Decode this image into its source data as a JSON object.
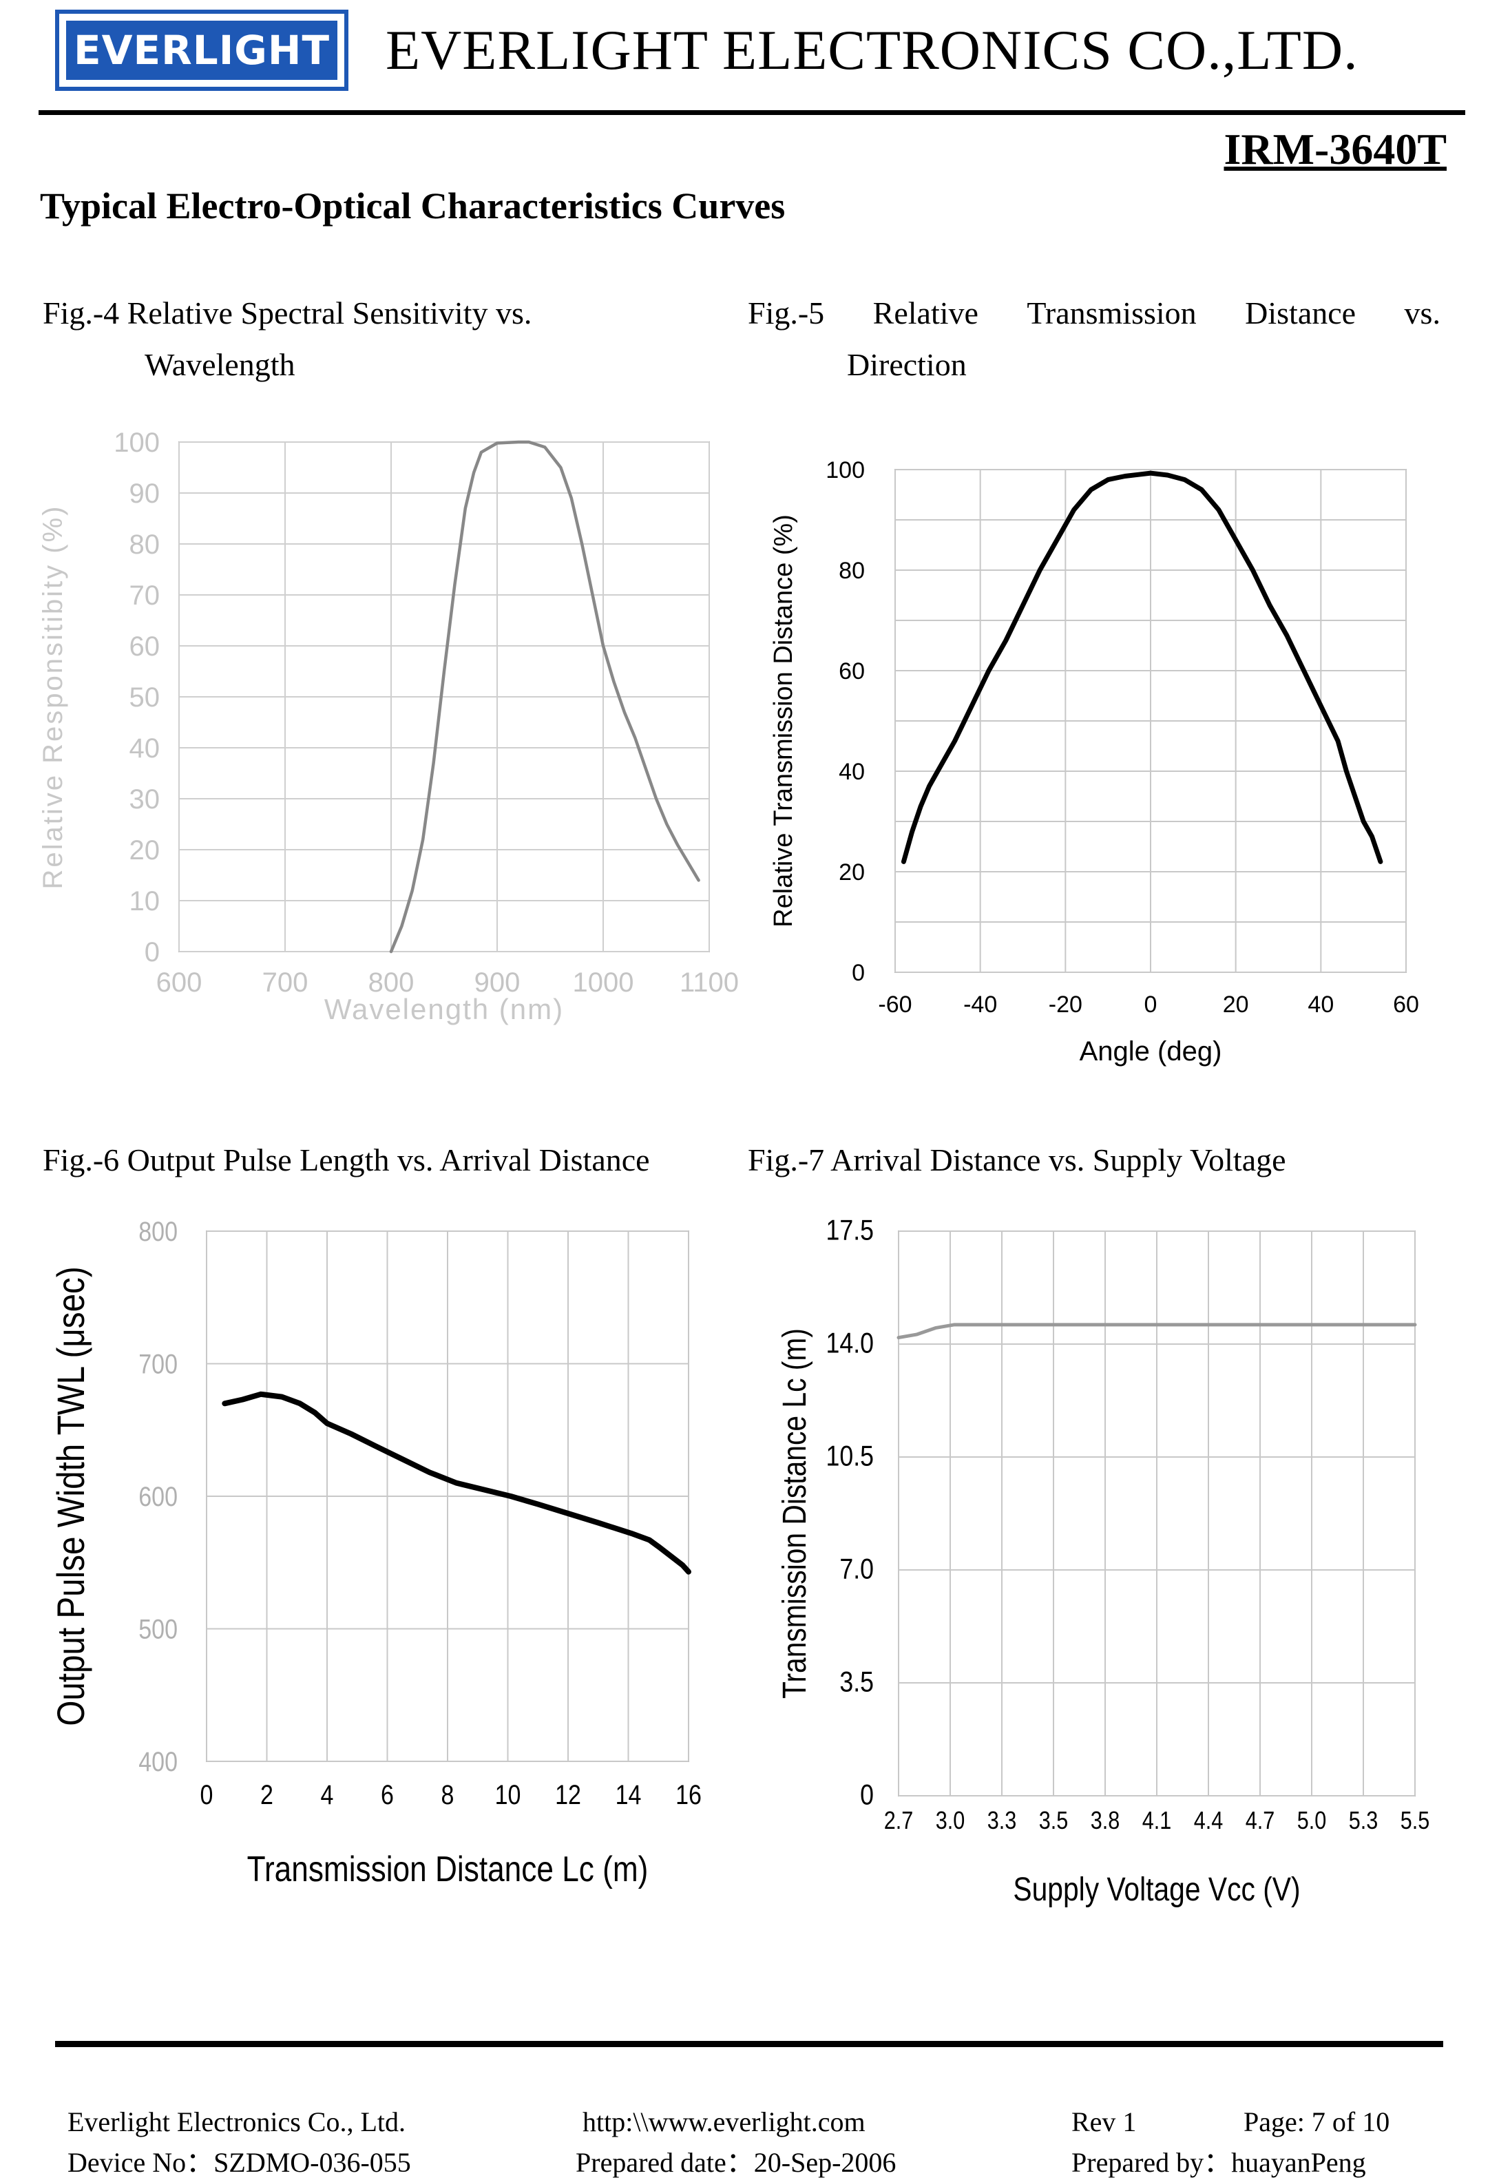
{
  "header": {
    "logo_text": "EVERLIGHT",
    "company": "EVERLIGHT ELECTRONICS CO.,LTD.",
    "part_no": "IRM-3640T",
    "section_title": "Typical Electro-Optical Characteristics Curves"
  },
  "colors": {
    "logo_blue": "#1e58b5",
    "light_curve": "#888888",
    "dark_curve": "#000000",
    "grid": "#c8c8c8"
  },
  "chart_data": [
    {
      "type": "line",
      "title_line1": "Fig.-4 Relative Spectral Sensitivity vs.",
      "title_line2": "Wavelength",
      "xlabel": "Wavelength (nm)",
      "ylabel": "Relative Responsitibity (%)",
      "xlim": [
        600,
        1100
      ],
      "ylim": [
        0,
        100
      ],
      "x_ticks": [
        "600",
        "700",
        "800",
        "900",
        "1000",
        "1100"
      ],
      "y_ticks": [
        "0",
        "10",
        "20",
        "30",
        "40",
        "50",
        "60",
        "70",
        "80",
        "90",
        "100"
      ],
      "series": [
        {
          "points": [
            [
              800,
              0
            ],
            [
              810,
              5
            ],
            [
              820,
              12
            ],
            [
              830,
              22
            ],
            [
              840,
              37
            ],
            [
              850,
              55
            ],
            [
              860,
              72
            ],
            [
              870,
              87
            ],
            [
              878,
              94
            ],
            [
              885,
              98
            ],
            [
              900,
              99.8
            ],
            [
              920,
              100
            ],
            [
              930,
              100
            ],
            [
              945,
              99
            ],
            [
              960,
              95
            ],
            [
              970,
              89
            ],
            [
              980,
              80
            ],
            [
              990,
              70
            ],
            [
              1000,
              60
            ],
            [
              1010,
              53
            ],
            [
              1020,
              47
            ],
            [
              1030,
              42
            ],
            [
              1040,
              36
            ],
            [
              1050,
              30
            ],
            [
              1060,
              25
            ],
            [
              1070,
              21
            ],
            [
              1080,
              17.5
            ],
            [
              1090,
              14
            ]
          ]
        }
      ]
    },
    {
      "type": "line",
      "title_line1": "Fig.-5 Relative Transmission Distance vs.",
      "title_line2": "Direction",
      "xlabel": "Angle (deg)",
      "ylabel": "Relative Transmission Distance (%)",
      "xlim": [
        -60,
        60
      ],
      "ylim": [
        0,
        100
      ],
      "x_ticks": [
        "-60",
        "-40",
        "-20",
        "0",
        "20",
        "40",
        "60"
      ],
      "y_ticks": [
        "0",
        "20",
        "40",
        "60",
        "80",
        "100"
      ],
      "series": [
        {
          "points": [
            [
              -58,
              22
            ],
            [
              -56,
              28
            ],
            [
              -54,
              33
            ],
            [
              -52,
              37
            ],
            [
              -50,
              40
            ],
            [
              -46,
              46
            ],
            [
              -42,
              53
            ],
            [
              -38,
              60
            ],
            [
              -34,
              66
            ],
            [
              -30,
              73
            ],
            [
              -26,
              80
            ],
            [
              -22,
              86
            ],
            [
              -18,
              92
            ],
            [
              -14,
              96
            ],
            [
              -10,
              98
            ],
            [
              -6,
              98.7
            ],
            [
              0,
              99.3
            ],
            [
              4,
              98.9
            ],
            [
              8,
              98
            ],
            [
              12,
              96
            ],
            [
              16,
              92
            ],
            [
              20,
              86
            ],
            [
              24,
              80
            ],
            [
              28,
              73
            ],
            [
              32,
              67
            ],
            [
              36,
              60
            ],
            [
              40,
              53
            ],
            [
              44,
              46
            ],
            [
              46,
              40
            ],
            [
              48,
              35
            ],
            [
              50,
              30
            ],
            [
              52,
              27
            ],
            [
              54,
              22
            ]
          ]
        }
      ]
    },
    {
      "type": "line",
      "title": "Fig.-6 Output Pulse Length vs. Arrival Distance",
      "xlabel": "Transmission Distance Lc (m)",
      "ylabel": "Output Pulse Width TWL (μsec)",
      "xlim": [
        0,
        16
      ],
      "ylim": [
        400,
        800
      ],
      "x_ticks": [
        "0",
        "2",
        "4",
        "6",
        "8",
        "10",
        "12",
        "14",
        "16"
      ],
      "y_ticks": [
        "400",
        "500",
        "600",
        "700",
        "800"
      ],
      "series": [
        {
          "points": [
            [
              0.6,
              670
            ],
            [
              1.2,
              673
            ],
            [
              1.8,
              677
            ],
            [
              2.5,
              675
            ],
            [
              3.1,
              670
            ],
            [
              3.6,
              663
            ],
            [
              4.0,
              655
            ],
            [
              4.8,
              647
            ],
            [
              5.6,
              638
            ],
            [
              6.5,
              628
            ],
            [
              7.4,
              618
            ],
            [
              8.3,
              610
            ],
            [
              9.2,
              605
            ],
            [
              10.1,
              600
            ],
            [
              11.0,
              594
            ],
            [
              12.0,
              587
            ],
            [
              13.0,
              580
            ],
            [
              14.1,
              572
            ],
            [
              14.7,
              567
            ],
            [
              15.0,
              562
            ],
            [
              15.4,
              555
            ],
            [
              15.8,
              548
            ],
            [
              16.0,
              543
            ]
          ]
        }
      ]
    },
    {
      "type": "line",
      "title": "Fig.-7 Arrival Distance vs. Supply Voltage",
      "xlabel": "Supply Voltage Vcc (V)",
      "ylabel": "Transmission Distance Lc (m)",
      "xlim": [
        2.7,
        5.5
      ],
      "ylim": [
        0,
        17.5
      ],
      "x_ticks": [
        "2.7",
        "3.0",
        "3.3",
        "3.5",
        "3.8",
        "4.1",
        "4.4",
        "4.7",
        "5.0",
        "5.3",
        "5.5"
      ],
      "y_ticks": [
        "0",
        "3.5",
        "7.0",
        "10.5",
        "14.0",
        "17.5"
      ],
      "series": [
        {
          "points": [
            [
              2.7,
              14.2
            ],
            [
              2.8,
              14.3
            ],
            [
              2.9,
              14.5
            ],
            [
              3.0,
              14.6
            ],
            [
              3.3,
              14.6
            ],
            [
              3.5,
              14.6
            ],
            [
              3.8,
              14.6
            ],
            [
              4.1,
              14.6
            ],
            [
              4.4,
              14.6
            ],
            [
              4.7,
              14.6
            ],
            [
              5.0,
              14.6
            ],
            [
              5.3,
              14.6
            ],
            [
              5.5,
              14.6
            ]
          ]
        }
      ]
    }
  ],
  "footer": {
    "company": "Everlight Electronics Co., Ltd.",
    "url": "http:\\\\www.everlight.com",
    "rev": "Rev 1",
    "page": "Page: 7 of 10",
    "device_no": "Device No：SZDMO-036-055",
    "prepared_date": "Prepared date：20-Sep-2006",
    "prepared_by": "Prepared by：huayanPeng"
  }
}
